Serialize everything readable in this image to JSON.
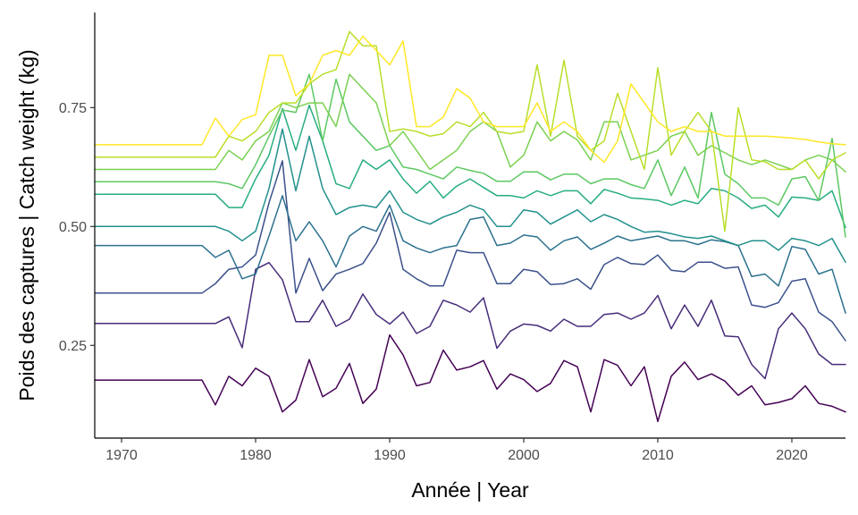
{
  "chart_data": {
    "type": "line",
    "title": "",
    "xlabel": "Année | Year",
    "ylabel": "Poids des captures | Catch weight (kg)",
    "xlim": [
      1968,
      2024
    ],
    "ylim": [
      0.055,
      0.95
    ],
    "xticks": [
      1970,
      1980,
      1990,
      2000,
      2010,
      2020
    ],
    "xtick_labels": [
      "1970",
      "1980",
      "1990",
      "2000",
      "2010",
      "2020"
    ],
    "yticks": [
      0.25,
      0.5,
      0.75
    ],
    "ytick_labels": [
      "0.25",
      "0.50",
      "0.75"
    ],
    "grid": false,
    "legend": "none",
    "x": [
      1968,
      1969,
      1970,
      1971,
      1972,
      1973,
      1974,
      1975,
      1976,
      1977,
      1978,
      1979,
      1980,
      1981,
      1982,
      1983,
      1984,
      1985,
      1986,
      1987,
      1988,
      1989,
      1990,
      1991,
      1992,
      1993,
      1994,
      1995,
      1996,
      1997,
      1998,
      1999,
      2000,
      2001,
      2002,
      2003,
      2004,
      2005,
      2006,
      2007,
      2008,
      2009,
      2010,
      2011,
      2012,
      2013,
      2014,
      2015,
      2016,
      2017,
      2018,
      2019,
      2020,
      2021,
      2022,
      2023,
      2024
    ],
    "series": [
      {
        "color": "#440154",
        "values": [
          0.177,
          0.177,
          0.177,
          0.177,
          0.177,
          0.177,
          0.177,
          0.177,
          0.177,
          0.125,
          0.185,
          0.165,
          0.202,
          0.185,
          0.11,
          0.135,
          0.22,
          0.142,
          0.16,
          0.212,
          0.128,
          0.158,
          0.272,
          0.23,
          0.165,
          0.172,
          0.24,
          0.198,
          0.205,
          0.218,
          0.158,
          0.19,
          0.178,
          0.153,
          0.17,
          0.218,
          0.205,
          0.11,
          0.22,
          0.208,
          0.165,
          0.205,
          0.09,
          0.185,
          0.215,
          0.178,
          0.19,
          0.175,
          0.145,
          0.165,
          0.125,
          0.13,
          0.138,
          0.165,
          0.128,
          0.122,
          0.11
        ]
      },
      {
        "color": "#472C7A",
        "values": [
          0.296,
          0.296,
          0.296,
          0.296,
          0.296,
          0.296,
          0.296,
          0.296,
          0.296,
          0.296,
          0.31,
          0.245,
          0.41,
          0.424,
          0.388,
          0.3,
          0.3,
          0.345,
          0.29,
          0.305,
          0.358,
          0.315,
          0.295,
          0.32,
          0.275,
          0.29,
          0.345,
          0.335,
          0.32,
          0.35,
          0.244,
          0.28,
          0.295,
          0.292,
          0.28,
          0.305,
          0.29,
          0.29,
          0.315,
          0.318,
          0.305,
          0.318,
          0.355,
          0.285,
          0.335,
          0.29,
          0.345,
          0.27,
          0.268,
          0.21,
          0.18,
          0.285,
          0.318,
          0.285,
          0.232,
          0.21,
          0.21
        ]
      },
      {
        "color": "#3B518B",
        "values": [
          0.36,
          0.36,
          0.36,
          0.36,
          0.36,
          0.36,
          0.36,
          0.36,
          0.36,
          0.38,
          0.41,
          0.415,
          0.44,
          0.55,
          0.638,
          0.36,
          0.433,
          0.365,
          0.4,
          0.41,
          0.422,
          0.465,
          0.53,
          0.41,
          0.39,
          0.375,
          0.375,
          0.45,
          0.445,
          0.445,
          0.38,
          0.38,
          0.41,
          0.405,
          0.378,
          0.38,
          0.39,
          0.368,
          0.42,
          0.435,
          0.422,
          0.42,
          0.44,
          0.408,
          0.405,
          0.425,
          0.425,
          0.412,
          0.415,
          0.335,
          0.33,
          0.34,
          0.385,
          0.39,
          0.32,
          0.3,
          0.26
        ]
      },
      {
        "color": "#2C718E",
        "values": [
          0.46,
          0.46,
          0.46,
          0.46,
          0.46,
          0.46,
          0.46,
          0.46,
          0.46,
          0.435,
          0.45,
          0.39,
          0.4,
          0.48,
          0.565,
          0.47,
          0.51,
          0.47,
          0.415,
          0.48,
          0.5,
          0.49,
          0.545,
          0.47,
          0.455,
          0.445,
          0.455,
          0.46,
          0.515,
          0.52,
          0.46,
          0.465,
          0.482,
          0.478,
          0.45,
          0.47,
          0.478,
          0.452,
          0.465,
          0.48,
          0.47,
          0.475,
          0.48,
          0.47,
          0.47,
          0.462,
          0.472,
          0.468,
          0.46,
          0.395,
          0.4,
          0.375,
          0.458,
          0.452,
          0.4,
          0.41,
          0.318
        ]
      },
      {
        "color": "#21908C",
        "values": [
          0.5,
          0.5,
          0.5,
          0.5,
          0.5,
          0.5,
          0.5,
          0.5,
          0.5,
          0.5,
          0.49,
          0.47,
          0.49,
          0.58,
          0.705,
          0.575,
          0.69,
          0.58,
          0.525,
          0.54,
          0.545,
          0.54,
          0.575,
          0.53,
          0.515,
          0.505,
          0.52,
          0.53,
          0.545,
          0.535,
          0.5,
          0.5,
          0.535,
          0.53,
          0.505,
          0.52,
          0.535,
          0.51,
          0.525,
          0.515,
          0.5,
          0.488,
          0.49,
          0.485,
          0.478,
          0.475,
          0.48,
          0.47,
          0.46,
          0.47,
          0.47,
          0.45,
          0.475,
          0.47,
          0.46,
          0.475,
          0.425
        ]
      },
      {
        "color": "#27AD81",
        "values": [
          0.568,
          0.568,
          0.568,
          0.568,
          0.568,
          0.568,
          0.568,
          0.568,
          0.568,
          0.568,
          0.54,
          0.54,
          0.6,
          0.65,
          0.748,
          0.66,
          0.755,
          0.68,
          0.59,
          0.58,
          0.64,
          0.62,
          0.64,
          0.6,
          0.57,
          0.595,
          0.56,
          0.585,
          0.6,
          0.582,
          0.565,
          0.565,
          0.56,
          0.575,
          0.565,
          0.575,
          0.575,
          0.548,
          0.578,
          0.57,
          0.56,
          0.558,
          0.555,
          0.545,
          0.555,
          0.548,
          0.58,
          0.575,
          0.56,
          0.538,
          0.545,
          0.52,
          0.562,
          0.56,
          0.555,
          0.575,
          0.498
        ]
      },
      {
        "color": "#5CC863",
        "values": [
          0.594,
          0.594,
          0.594,
          0.594,
          0.594,
          0.594,
          0.594,
          0.594,
          0.594,
          0.594,
          0.59,
          0.58,
          0.63,
          0.69,
          0.745,
          0.74,
          0.82,
          0.68,
          0.81,
          0.72,
          0.69,
          0.66,
          0.67,
          0.625,
          0.62,
          0.61,
          0.6,
          0.625,
          0.618,
          0.612,
          0.595,
          0.595,
          0.615,
          0.615,
          0.598,
          0.61,
          0.61,
          0.59,
          0.6,
          0.6,
          0.588,
          0.58,
          0.64,
          0.565,
          0.625,
          0.56,
          0.74,
          0.61,
          0.59,
          0.56,
          0.56,
          0.545,
          0.6,
          0.605,
          0.555,
          0.685,
          0.478
        ]
      },
      {
        "color": "#7AD151",
        "values": [
          0.62,
          0.62,
          0.62,
          0.62,
          0.62,
          0.62,
          0.62,
          0.62,
          0.62,
          0.62,
          0.66,
          0.64,
          0.68,
          0.7,
          0.76,
          0.75,
          0.76,
          0.76,
          0.71,
          0.82,
          0.79,
          0.76,
          0.67,
          0.7,
          0.66,
          0.62,
          0.64,
          0.66,
          0.7,
          0.72,
          0.7,
          0.625,
          0.65,
          0.72,
          0.68,
          0.7,
          0.682,
          0.64,
          0.72,
          0.72,
          0.64,
          0.65,
          0.66,
          0.69,
          0.7,
          0.65,
          0.67,
          0.655,
          0.64,
          0.63,
          0.64,
          0.63,
          0.62,
          0.64,
          0.65,
          0.64,
          0.615
        ]
      },
      {
        "color": "#B8DE29",
        "values": [
          0.646,
          0.646,
          0.646,
          0.646,
          0.646,
          0.646,
          0.646,
          0.646,
          0.646,
          0.646,
          0.69,
          0.68,
          0.7,
          0.74,
          0.76,
          0.76,
          0.8,
          0.82,
          0.83,
          0.91,
          0.88,
          0.88,
          0.7,
          0.705,
          0.7,
          0.69,
          0.695,
          0.72,
          0.71,
          0.74,
          0.7,
          0.695,
          0.7,
          0.84,
          0.69,
          0.85,
          0.69,
          0.66,
          0.68,
          0.78,
          0.7,
          0.62,
          0.834,
          0.65,
          0.7,
          0.74,
          0.7,
          0.49,
          0.75,
          0.64,
          0.636,
          0.62,
          0.62,
          0.64,
          0.6,
          0.64,
          0.655
        ]
      },
      {
        "color": "#FDE725",
        "values": [
          0.672,
          0.672,
          0.672,
          0.672,
          0.672,
          0.672,
          0.672,
          0.672,
          0.672,
          0.728,
          0.69,
          0.725,
          0.735,
          0.86,
          0.86,
          0.775,
          0.8,
          0.86,
          0.87,
          0.86,
          0.9,
          0.87,
          0.84,
          0.89,
          0.71,
          0.71,
          0.73,
          0.79,
          0.77,
          0.72,
          0.71,
          0.71,
          0.71,
          0.76,
          0.7,
          0.72,
          0.7,
          0.66,
          0.635,
          0.68,
          0.8,
          0.76,
          0.72,
          0.7,
          0.71,
          0.7,
          0.7,
          0.69,
          0.69,
          0.69,
          0.69,
          0.688,
          0.686,
          0.683,
          0.678,
          0.674,
          0.672
        ]
      }
    ]
  }
}
